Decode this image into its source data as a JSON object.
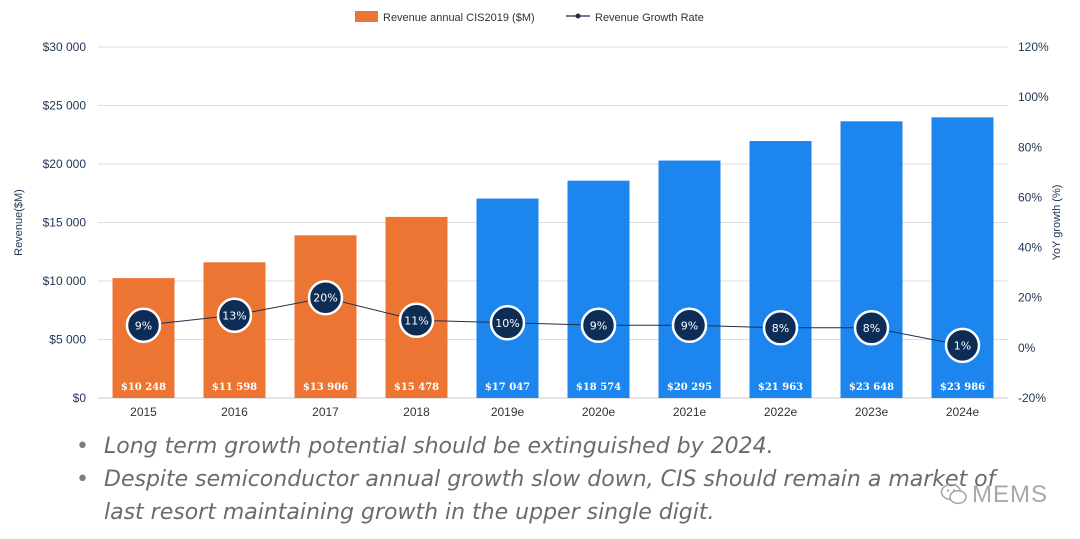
{
  "chart_data": {
    "type": "bar+line",
    "categories": [
      "2015",
      "2016",
      "2017",
      "2018",
      "2019e",
      "2020e",
      "2021e",
      "2022e",
      "2023e",
      "2024e"
    ],
    "series": [
      {
        "name": "Revenue annual CIS2019 ($M)",
        "type": "bar",
        "axis": "left",
        "values": [
          10248,
          11598,
          13906,
          15478,
          17047,
          18574,
          20295,
          21963,
          23648,
          23986
        ],
        "value_labels": [
          "$10 248",
          "$11 598",
          "$13 906",
          "$15 478",
          "$17 047",
          "$18 574",
          "$20 295",
          "$21 963",
          "$23 648",
          "$23 986"
        ],
        "colors": [
          "#ed7534",
          "#ed7534",
          "#ed7534",
          "#ed7534",
          "#1c86ee",
          "#1c86ee",
          "#1c86ee",
          "#1c86ee",
          "#1c86ee",
          "#1c86ee"
        ]
      },
      {
        "name": "Revenue Growth Rate",
        "type": "line",
        "axis": "right",
        "values": [
          9,
          13,
          20,
          11,
          10,
          9,
          9,
          8,
          8,
          1
        ],
        "value_labels": [
          "9%",
          "13%",
          "20%",
          "11%",
          "10%",
          "9%",
          "9%",
          "8%",
          "8%",
          "1%"
        ],
        "marker_color": "#0d2d57"
      }
    ],
    "ylabel": "Revenue($M)",
    "y2label": "YoY growth (%)",
    "ylim": [
      0,
      30000
    ],
    "y2lim": [
      -20,
      120
    ],
    "yticks": [
      0,
      5000,
      10000,
      15000,
      20000,
      25000,
      30000
    ],
    "ytick_labels": [
      "$0",
      "$5 000",
      "$10 000",
      "$15 000",
      "$20 000",
      "$25 000",
      "$30 000"
    ],
    "y2ticks": [
      -20,
      0,
      20,
      40,
      60,
      80,
      100,
      120
    ],
    "y2tick_labels": [
      "-20%",
      "0%",
      "20%",
      "40%",
      "60%",
      "80%",
      "100%",
      "120%"
    ],
    "grid": true,
    "legend_position": "top-center",
    "legend": {
      "bar_label": "Revenue annual CIS2019 ($M)",
      "line_label": "Revenue Growth Rate",
      "bar_color": "#ed7534",
      "line_color": "#1f2f4a"
    }
  },
  "bullets": [
    "Long term growth potential should be extinguished by 2024.",
    "Despite semiconductor annual growth slow down, CIS should remain a market of",
    "last resort maintaining growth in the upper single digit."
  ],
  "bullet_glyph": "•",
  "watermark": "MEMS"
}
